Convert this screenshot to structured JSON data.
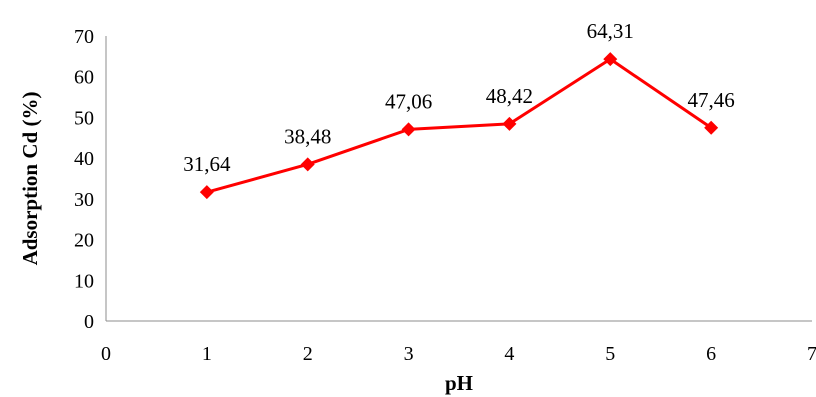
{
  "chart_data": {
    "type": "scatter",
    "title": "",
    "xlabel": "pH",
    "ylabel": "Adsorption Cd (%)",
    "xlim": [
      0,
      7
    ],
    "ylim": [
      0,
      70
    ],
    "x_ticks": [
      "0",
      "1",
      "2",
      "3",
      "4",
      "5",
      "6",
      "7"
    ],
    "y_ticks": [
      "0",
      "10",
      "20",
      "30",
      "40",
      "50",
      "60",
      "70"
    ],
    "grid": false,
    "legend": "none",
    "marker": "diamond",
    "series_color": "#ff0000",
    "series": [
      {
        "x": [
          1,
          2,
          3,
          4,
          5,
          6
        ],
        "y": [
          31.64,
          38.48,
          47.06,
          48.42,
          64.31,
          47.46
        ],
        "labels": [
          "31,64",
          "38,48",
          "47,06",
          "48,42",
          "64,31",
          "47,46"
        ]
      }
    ]
  }
}
